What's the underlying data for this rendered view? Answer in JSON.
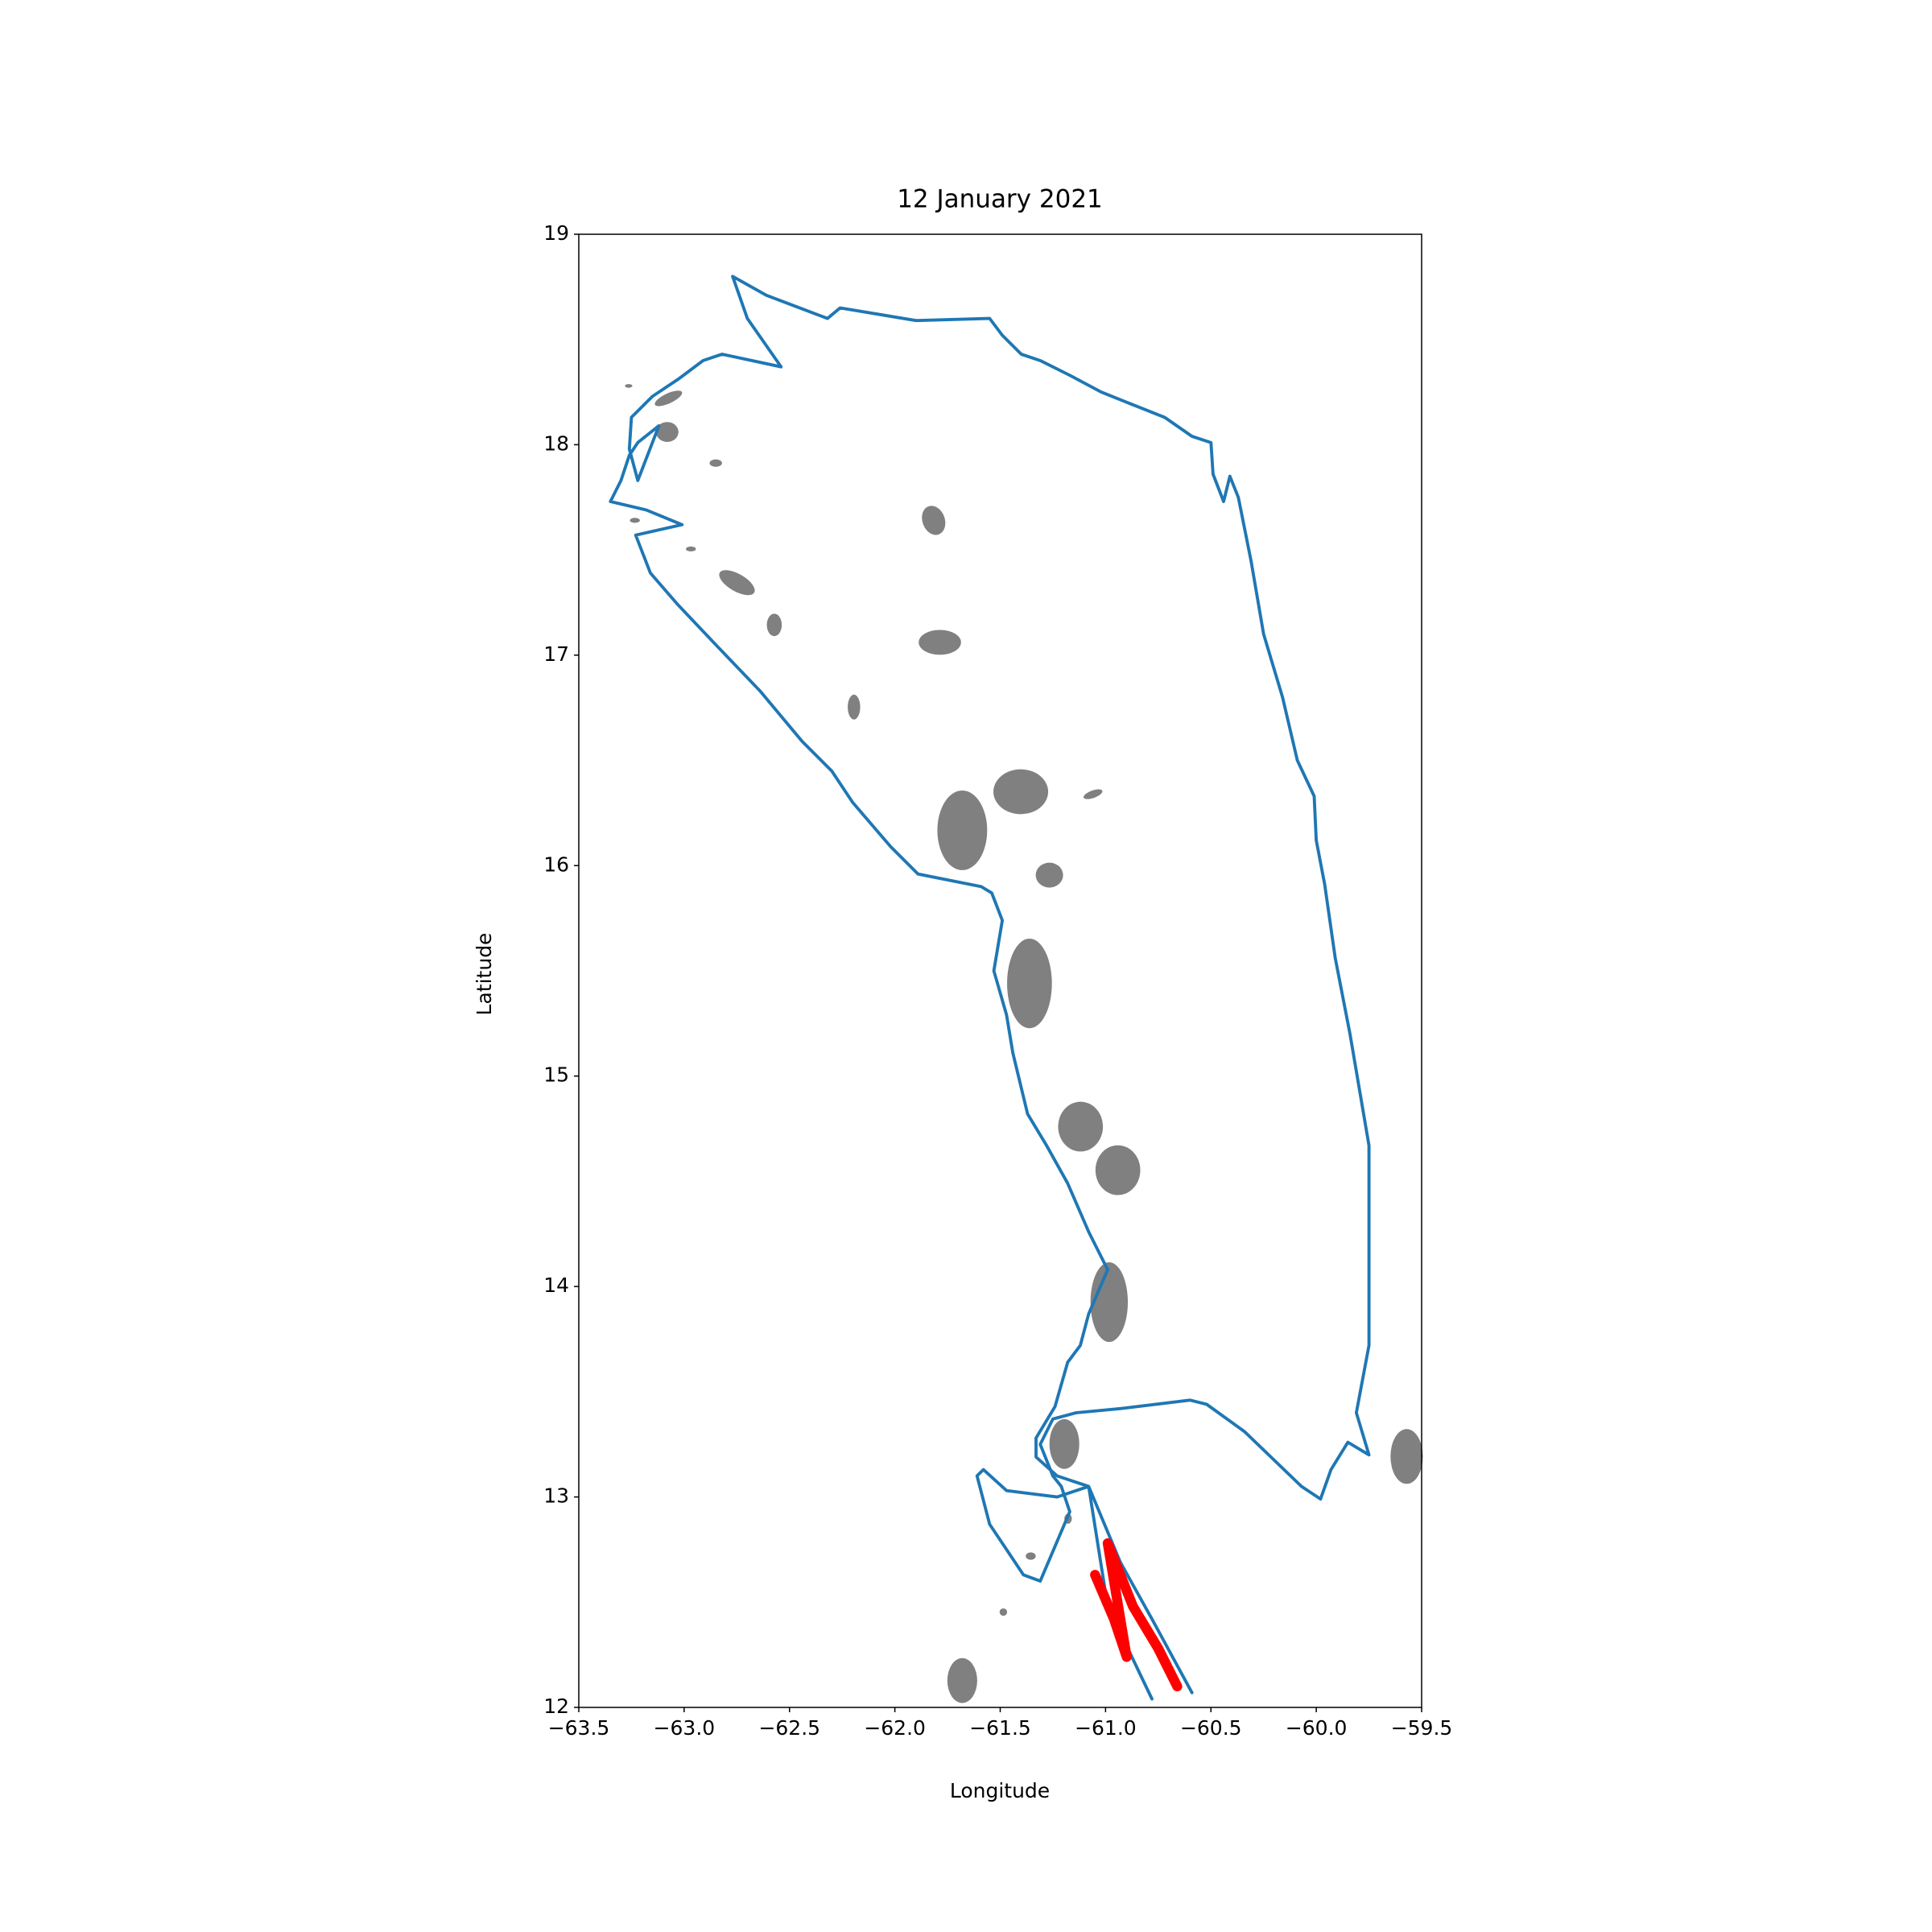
{
  "chart_data": {
    "type": "line",
    "title": "12 January 2021",
    "x_label": "Longitude",
    "y_label": "Latitude",
    "xlim": [
      -63.5,
      -59.5
    ],
    "ylim": [
      12,
      19
    ],
    "xticks": [
      {
        "value": -63.5,
        "label": "−63.5"
      },
      {
        "value": -63.0,
        "label": "−63.0"
      },
      {
        "value": -62.5,
        "label": "−62.5"
      },
      {
        "value": -62.0,
        "label": "−62.0"
      },
      {
        "value": -61.5,
        "label": "−61.5"
      },
      {
        "value": -61.0,
        "label": "−61.0"
      },
      {
        "value": -60.5,
        "label": "−60.5"
      },
      {
        "value": -60.0,
        "label": "−60.0"
      },
      {
        "value": -59.5,
        "label": "−59.5"
      }
    ],
    "yticks": [
      12,
      13,
      14,
      15,
      16,
      17,
      18,
      19
    ],
    "grid": false,
    "series": [
      {
        "color": "#1f77b4",
        "width": 2.5,
        "x": [
          -60.78,
          -60.99,
          -61.08,
          -61.23,
          -61.33,
          -61.33,
          -61.24,
          -61.18,
          -61.12,
          -61.08,
          -60.99,
          -61.08,
          -61.18,
          -61.28,
          -61.37,
          -61.44,
          -61.47,
          -61.53,
          -61.49,
          -61.54,
          -61.59,
          -61.89,
          -62.02,
          -62.2,
          -62.3,
          -62.44,
          -62.64,
          -62.85,
          -63.03,
          -63.16,
          -63.23,
          -63.01,
          -63.18,
          -63.35,
          -63.3,
          -63.26,
          -63.22,
          -63.12,
          -63.22,
          -63.26,
          -63.25,
          -63.15,
          -63.03,
          -62.91,
          -62.82,
          -62.54,
          -62.7,
          -62.77,
          -62.61,
          -62.32,
          -62.26,
          -62.08,
          -61.9,
          -61.55,
          -61.49,
          -61.4,
          -61.31,
          -61.17,
          -61.02,
          -60.87,
          -60.72,
          -60.59,
          -60.5,
          -60.49,
          -60.44,
          -60.41,
          -60.37,
          -60.31,
          -60.25,
          -60.16,
          -60.09,
          -60.01,
          -60.0,
          -59.96,
          -59.91,
          -59.84,
          -59.75,
          -59.75,
          -59.75,
          -59.81,
          -59.75,
          -59.85,
          -59.93,
          -59.98,
          -60.07,
          -60.34,
          -60.52,
          -60.6,
          -60.93,
          -61.14,
          -61.25,
          -61.31,
          -61.25,
          -61.21,
          -61.17,
          -61.31,
          -61.39,
          -61.47,
          -61.55,
          -61.61,
          -61.58,
          -61.47,
          -61.23,
          -61.08,
          -60.93,
          -60.78,
          -60.59
        ],
        "values": [
          12.04,
          12.48,
          13.05,
          13.1,
          13.19,
          13.28,
          13.43,
          13.64,
          13.72,
          13.87,
          14.08,
          14.26,
          14.49,
          14.67,
          14.82,
          15.11,
          15.29,
          15.5,
          15.74,
          15.87,
          15.9,
          15.96,
          16.09,
          16.3,
          16.45,
          16.59,
          16.83,
          17.05,
          17.24,
          17.39,
          17.57,
          17.62,
          17.69,
          17.73,
          17.83,
          17.95,
          18.01,
          18.09,
          17.83,
          17.98,
          18.13,
          18.23,
          18.31,
          18.4,
          18.43,
          18.37,
          18.6,
          18.8,
          18.71,
          18.6,
          18.65,
          18.62,
          18.59,
          18.6,
          18.52,
          18.43,
          18.4,
          18.33,
          18.25,
          18.19,
          18.13,
          18.04,
          18.01,
          17.86,
          17.73,
          17.85,
          17.75,
          17.45,
          17.1,
          16.8,
          16.5,
          16.33,
          16.12,
          15.91,
          15.56,
          15.2,
          14.67,
          14.08,
          13.72,
          13.4,
          13.2,
          13.26,
          13.13,
          12.99,
          13.05,
          13.31,
          13.44,
          13.46,
          13.42,
          13.4,
          13.37,
          13.25,
          13.1,
          13.05,
          12.93,
          12.6,
          12.63,
          12.75,
          12.87,
          13.1,
          13.13,
          13.03,
          13.0,
          13.05,
          12.69,
          12.42,
          12.07
        ]
      },
      {
        "color": "#ff0000",
        "width": 8,
        "x": [
          -61.05,
          -60.96,
          -60.9,
          -60.99,
          -60.87,
          -60.75,
          -60.66
        ],
        "values": [
          12.63,
          12.42,
          12.24,
          12.78,
          12.48,
          12.28,
          12.1
        ]
      }
    ]
  }
}
